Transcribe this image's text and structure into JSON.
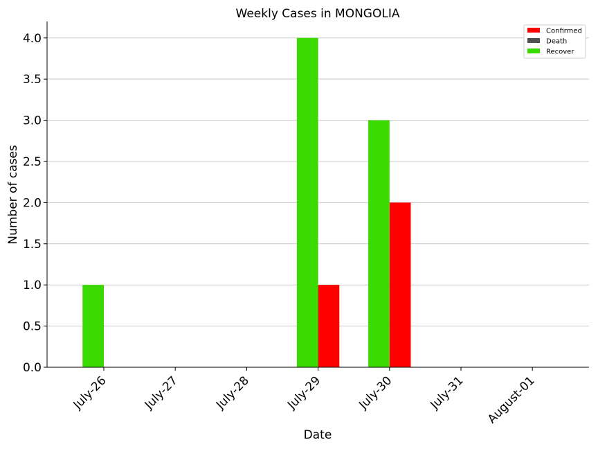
{
  "chart_data": {
    "type": "bar",
    "title": "Weekly Cases in MONGOLIA",
    "xlabel": "Date",
    "ylabel": "Number of cases",
    "categories": [
      "July-26",
      "July-27",
      "July-28",
      "July-29",
      "July-30",
      "July-31",
      "August-01"
    ],
    "series": [
      {
        "name": "Confirmed",
        "color": "#ff0000",
        "values": [
          0,
          0,
          0,
          1,
          2,
          0,
          0
        ]
      },
      {
        "name": "Death",
        "color": "#505050",
        "values": [
          0,
          0,
          0,
          0,
          0,
          0,
          0
        ]
      },
      {
        "name": "Recover",
        "color": "#3ad900",
        "values": [
          1,
          0,
          0,
          4,
          3,
          0,
          0
        ]
      }
    ],
    "ylim": [
      0,
      4.2
    ],
    "yticks": [
      "0.0",
      "0.5",
      "1.0",
      "1.5",
      "2.0",
      "2.5",
      "3.0",
      "3.5",
      "4.0"
    ],
    "grid": true,
    "legend_position": "top-right"
  }
}
